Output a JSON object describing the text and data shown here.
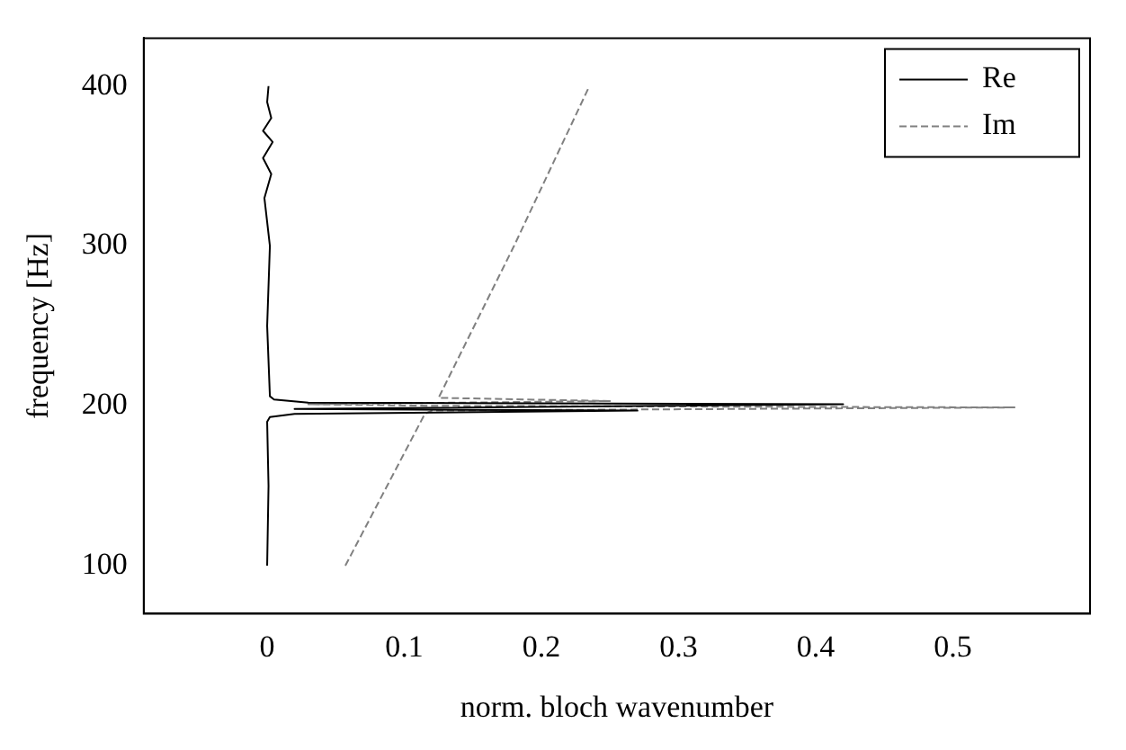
{
  "chart_data": {
    "type": "line",
    "xlabel": "norm. bloch wavenumber",
    "ylabel": "frequency [Hz]",
    "xlim": [
      -0.09,
      0.6
    ],
    "ylim": [
      70,
      430
    ],
    "xticks": [
      0,
      0.1,
      0.2,
      0.3,
      0.4,
      0.5
    ],
    "yticks": [
      100,
      200,
      300,
      400
    ],
    "grid": false,
    "legend": "top right",
    "marker": "none",
    "series": [
      {
        "name": "Re",
        "color": "#000000",
        "line_style": "solid",
        "x": [
          0,
          0.001,
          0,
          0.002,
          0.02,
          0.27,
          0.02,
          0.42,
          0.03,
          0.005,
          0.002,
          0,
          0.002,
          -0.002,
          0.003,
          -0.003,
          0.004,
          -0.003,
          0.003,
          0,
          0.001
        ],
        "values": [
          100,
          150,
          190,
          193,
          195,
          197,
          198,
          201,
          202,
          204,
          206,
          250,
          300,
          330,
          345,
          355,
          365,
          372,
          380,
          390,
          400
        ]
      },
      {
        "name": "Im",
        "color": "#808080",
        "line_style": "dashed",
        "x": [
          0.057,
          0.115,
          0.12,
          0.545,
          0.12,
          0.03,
          0.25,
          0.125,
          0.18,
          0.235
        ],
        "values": [
          100,
          195,
          197,
          199,
          200,
          201,
          203,
          205,
          300,
          400
        ]
      }
    ]
  }
}
